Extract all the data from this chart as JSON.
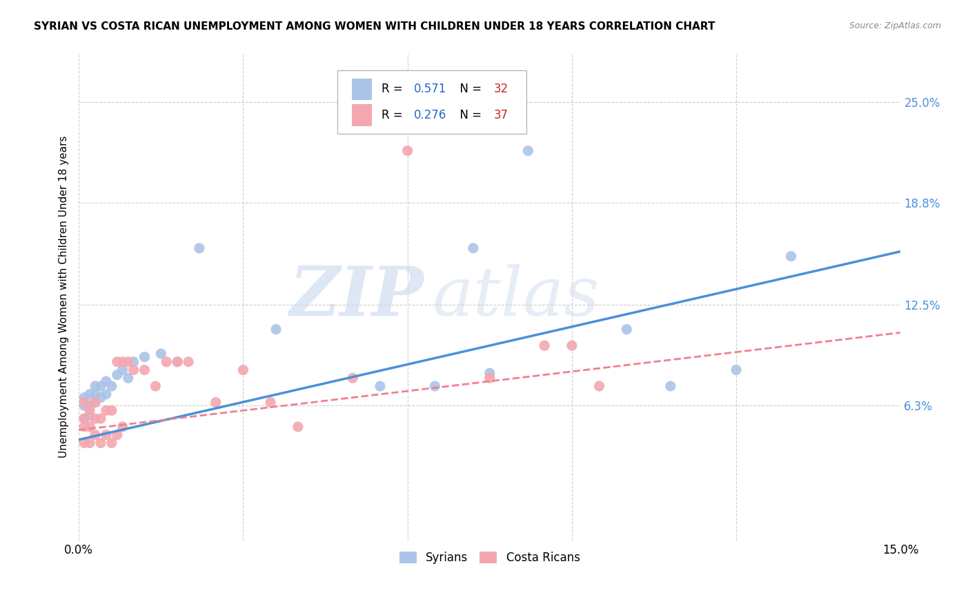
{
  "title": "SYRIAN VS COSTA RICAN UNEMPLOYMENT AMONG WOMEN WITH CHILDREN UNDER 18 YEARS CORRELATION CHART",
  "source": "Source: ZipAtlas.com",
  "ylabel": "Unemployment Among Women with Children Under 18 years",
  "xmin": 0.0,
  "xmax": 0.15,
  "ymin": -0.02,
  "ymax": 0.28,
  "yticks": [
    0.063,
    0.125,
    0.188,
    0.25
  ],
  "ytick_labels": [
    "6.3%",
    "12.5%",
    "18.8%",
    "25.0%"
  ],
  "background_color": "#ffffff",
  "plot_bg_color": "#ffffff",
  "grid_color": "#cccccc",
  "syrian_color": "#aac4e8",
  "costa_rican_color": "#f4a7b0",
  "syrian_line_color": "#4a90d9",
  "costa_rican_line_color": "#f08090",
  "legend_R_color": "#2266cc",
  "legend_N_color": "#cc2222",
  "watermark_zip": "ZIP",
  "watermark_atlas": "atlas",
  "syrians_label": "Syrians",
  "costa_ricans_label": "Costa Ricans",
  "R_syrian": "0.571",
  "N_syrian": "32",
  "R_costa": "0.276",
  "N_costa": "37",
  "syrian_x": [
    0.001,
    0.001,
    0.001,
    0.002,
    0.002,
    0.002,
    0.003,
    0.003,
    0.003,
    0.004,
    0.004,
    0.005,
    0.005,
    0.006,
    0.007,
    0.008,
    0.009,
    0.01,
    0.012,
    0.015,
    0.018,
    0.022,
    0.036,
    0.055,
    0.065,
    0.072,
    0.075,
    0.082,
    0.1,
    0.108,
    0.12,
    0.13
  ],
  "syrian_y": [
    0.055,
    0.063,
    0.068,
    0.057,
    0.063,
    0.07,
    0.065,
    0.07,
    0.075,
    0.068,
    0.075,
    0.07,
    0.078,
    0.075,
    0.082,
    0.085,
    0.08,
    0.09,
    0.093,
    0.095,
    0.09,
    0.16,
    0.11,
    0.075,
    0.075,
    0.16,
    0.083,
    0.22,
    0.11,
    0.075,
    0.085,
    0.155
  ],
  "costa_x": [
    0.001,
    0.001,
    0.001,
    0.001,
    0.002,
    0.002,
    0.002,
    0.003,
    0.003,
    0.003,
    0.004,
    0.004,
    0.005,
    0.005,
    0.006,
    0.006,
    0.007,
    0.007,
    0.008,
    0.008,
    0.009,
    0.01,
    0.012,
    0.014,
    0.016,
    0.018,
    0.02,
    0.025,
    0.03,
    0.035,
    0.04,
    0.05,
    0.06,
    0.075,
    0.085,
    0.09,
    0.095
  ],
  "costa_y": [
    0.04,
    0.05,
    0.055,
    0.065,
    0.04,
    0.05,
    0.06,
    0.045,
    0.055,
    0.065,
    0.04,
    0.055,
    0.045,
    0.06,
    0.04,
    0.06,
    0.045,
    0.09,
    0.05,
    0.09,
    0.09,
    0.085,
    0.085,
    0.075,
    0.09,
    0.09,
    0.09,
    0.065,
    0.085,
    0.065,
    0.05,
    0.08,
    0.22,
    0.08,
    0.1,
    0.1,
    0.075
  ],
  "syrian_line_x0": 0.0,
  "syrian_line_y0": 0.042,
  "syrian_line_x1": 0.15,
  "syrian_line_y1": 0.158,
  "costa_line_x0": 0.0,
  "costa_line_y0": 0.048,
  "costa_line_x1": 0.15,
  "costa_line_y1": 0.108
}
